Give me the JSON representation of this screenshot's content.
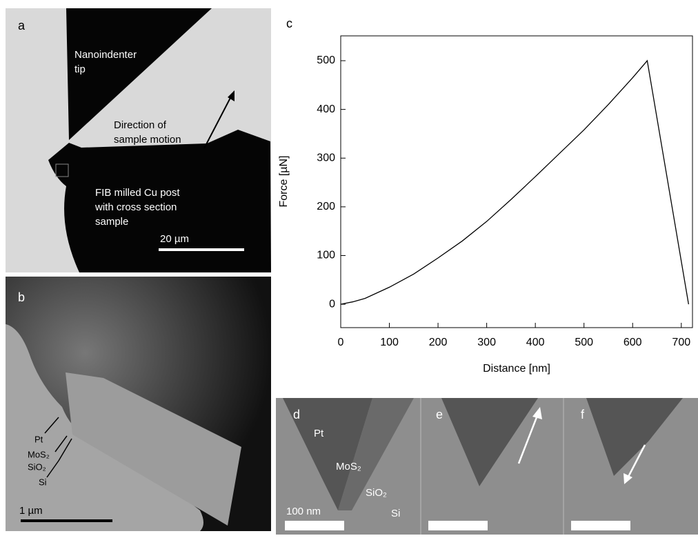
{
  "panels": {
    "a": {
      "label": "a",
      "tip": [
        "Nanoindenter",
        "tip"
      ],
      "motion": [
        "Direction of",
        "sample motion"
      ],
      "post": [
        "FIB milled Cu post",
        "with cross section",
        "sample"
      ],
      "scale": "20 µm"
    },
    "b": {
      "label": "b",
      "layers": [
        "Pt",
        "MoS₂",
        "SiO₂",
        "Si"
      ],
      "scale": "1 µm"
    },
    "d": {
      "label": "d",
      "layers": [
        "Pt",
        "MoS₂",
        "SiO₂",
        "Si"
      ],
      "scale": "100 nm"
    },
    "e": {
      "label": "e"
    },
    "f": {
      "label": "f"
    }
  },
  "chart_data": {
    "type": "line",
    "panel_label": "c",
    "x_label": "Distance [nm]",
    "y_label": "Force [µN]",
    "x": [
      0,
      25,
      50,
      100,
      150,
      200,
      250,
      300,
      350,
      400,
      450,
      500,
      550,
      600,
      630,
      715
    ],
    "values": [
      0,
      5,
      12,
      35,
      62,
      95,
      130,
      170,
      215,
      262,
      310,
      358,
      410,
      465,
      500,
      0
    ],
    "color": "#000000",
    "xlim": [
      0,
      723
    ],
    "xticks": [
      0,
      100,
      200,
      300,
      400,
      500,
      600,
      700
    ],
    "ylim": [
      -48,
      551
    ],
    "yticks": [
      0,
      100,
      200,
      300,
      400,
      500
    ]
  }
}
